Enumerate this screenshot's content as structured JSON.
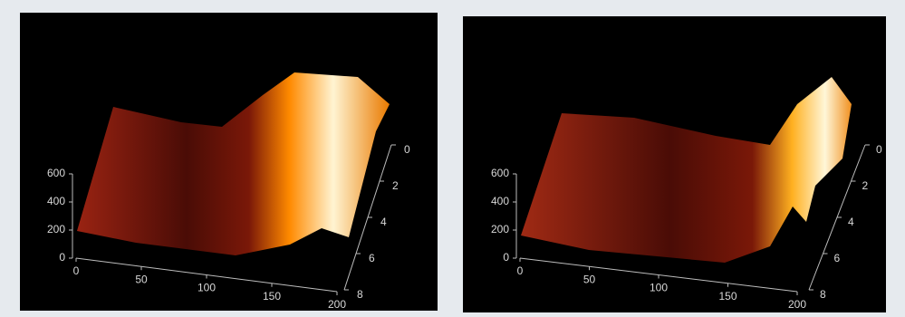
{
  "chart_data": [
    {
      "type": "surface",
      "xlim": [
        0,
        200
      ],
      "xticks": [
        0,
        50,
        100,
        150,
        200
      ],
      "ylim": [
        0,
        8
      ],
      "yticks": [
        0,
        2,
        4,
        6,
        8
      ],
      "zlim": [
        0,
        600
      ],
      "zticks": [
        0,
        200,
        400,
        600
      ]
    },
    {
      "type": "surface",
      "xlim": [
        0,
        200
      ],
      "xticks": [
        0,
        50,
        100,
        150,
        200
      ],
      "ylim": [
        0,
        8
      ],
      "yticks": [
        0,
        2,
        4,
        6,
        8
      ],
      "zlim": [
        0,
        600
      ],
      "zticks": [
        0,
        200,
        400,
        600
      ]
    }
  ]
}
